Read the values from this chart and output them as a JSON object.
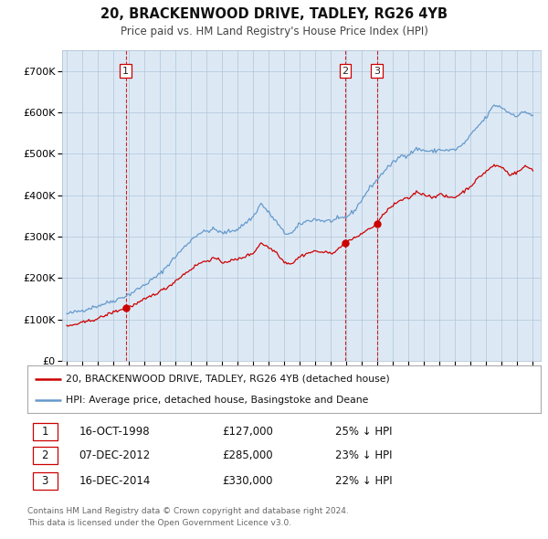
{
  "title": "20, BRACKENWOOD DRIVE, TADLEY, RG26 4YB",
  "subtitle": "Price paid vs. HM Land Registry's House Price Index (HPI)",
  "fig_bg_color": "#ffffff",
  "plot_bg_color": "#dce9f5",
  "ylim": [
    0,
    750000
  ],
  "yticks": [
    0,
    100000,
    200000,
    300000,
    400000,
    500000,
    600000,
    700000
  ],
  "ytick_labels": [
    "£0",
    "£100K",
    "£200K",
    "£300K",
    "£400K",
    "£500K",
    "£600K",
    "£700K"
  ],
  "xlim_start": 1994.7,
  "xlim_end": 2025.5,
  "transactions": [
    {
      "num": 1,
      "date": "16-OCT-1998",
      "price": 127000,
      "pct": "25%",
      "year": 1998.79
    },
    {
      "num": 2,
      "date": "07-DEC-2012",
      "price": 285000,
      "pct": "23%",
      "year": 2012.93
    },
    {
      "num": 3,
      "date": "16-DEC-2014",
      "price": 330000,
      "pct": "22%",
      "year": 2014.96
    }
  ],
  "legend_property_label": "20, BRACKENWOOD DRIVE, TADLEY, RG26 4YB (detached house)",
  "legend_hpi_label": "HPI: Average price, detached house, Basingstoke and Deane",
  "footer1": "Contains HM Land Registry data © Crown copyright and database right 2024.",
  "footer2": "This data is licensed under the Open Government Licence v3.0.",
  "property_color": "#cc0000",
  "hpi_color": "#6699cc",
  "marker_color": "#cc0000",
  "vline_color": "#cc0000",
  "grid_color": "#b0c4d8",
  "hpi_keypoints": [
    [
      1995.0,
      113000
    ],
    [
      1996.0,
      122000
    ],
    [
      1997.0,
      133000
    ],
    [
      1998.0,
      145000
    ],
    [
      1999.0,
      160000
    ],
    [
      2000.0,
      183000
    ],
    [
      2001.0,
      210000
    ],
    [
      2002.0,
      252000
    ],
    [
      2003.0,
      292000
    ],
    [
      2003.5,
      308000
    ],
    [
      2004.5,
      318000
    ],
    [
      2005.0,
      308000
    ],
    [
      2006.0,
      318000
    ],
    [
      2007.0,
      348000
    ],
    [
      2007.5,
      380000
    ],
    [
      2008.5,
      335000
    ],
    [
      2009.0,
      308000
    ],
    [
      2009.5,
      308000
    ],
    [
      2010.0,
      330000
    ],
    [
      2010.5,
      338000
    ],
    [
      2011.0,
      342000
    ],
    [
      2011.5,
      338000
    ],
    [
      2012.0,
      338000
    ],
    [
      2012.5,
      342000
    ],
    [
      2013.0,
      348000
    ],
    [
      2013.5,
      362000
    ],
    [
      2014.0,
      390000
    ],
    [
      2014.5,
      418000
    ],
    [
      2015.0,
      438000
    ],
    [
      2015.5,
      462000
    ],
    [
      2016.0,
      478000
    ],
    [
      2016.5,
      495000
    ],
    [
      2017.0,
      498000
    ],
    [
      2017.5,
      512000
    ],
    [
      2018.0,
      508000
    ],
    [
      2018.5,
      505000
    ],
    [
      2019.0,
      510000
    ],
    [
      2019.5,
      508000
    ],
    [
      2020.0,
      510000
    ],
    [
      2020.5,
      522000
    ],
    [
      2021.0,
      545000
    ],
    [
      2021.5,
      568000
    ],
    [
      2022.0,
      588000
    ],
    [
      2022.5,
      618000
    ],
    [
      2023.0,
      612000
    ],
    [
      2023.5,
      598000
    ],
    [
      2024.0,
      592000
    ],
    [
      2024.5,
      602000
    ],
    [
      2025.0,
      592000
    ]
  ],
  "prop_keypoints": [
    [
      1995.0,
      83000
    ],
    [
      1996.0,
      92000
    ],
    [
      1997.0,
      102000
    ],
    [
      1998.0,
      118000
    ],
    [
      1998.79,
      127000
    ],
    [
      1999.5,
      138000
    ],
    [
      2000.5,
      158000
    ],
    [
      2001.5,
      178000
    ],
    [
      2002.5,
      208000
    ],
    [
      2003.5,
      235000
    ],
    [
      2004.5,
      248000
    ],
    [
      2005.0,
      238000
    ],
    [
      2006.0,
      245000
    ],
    [
      2007.0,
      260000
    ],
    [
      2007.5,
      285000
    ],
    [
      2008.5,
      262000
    ],
    [
      2009.0,
      238000
    ],
    [
      2009.5,
      235000
    ],
    [
      2010.0,
      252000
    ],
    [
      2010.5,
      260000
    ],
    [
      2011.0,
      265000
    ],
    [
      2011.5,
      262000
    ],
    [
      2012.0,
      260000
    ],
    [
      2012.5,
      270000
    ],
    [
      2012.93,
      285000
    ],
    [
      2013.0,
      288000
    ],
    [
      2013.5,
      295000
    ],
    [
      2014.0,
      308000
    ],
    [
      2014.96,
      330000
    ],
    [
      2015.5,
      360000
    ],
    [
      2016.0,
      375000
    ],
    [
      2016.5,
      388000
    ],
    [
      2017.0,
      392000
    ],
    [
      2017.5,
      408000
    ],
    [
      2018.0,
      402000
    ],
    [
      2018.5,
      395000
    ],
    [
      2019.0,
      402000
    ],
    [
      2019.5,
      395000
    ],
    [
      2020.0,
      395000
    ],
    [
      2020.5,
      408000
    ],
    [
      2021.0,
      422000
    ],
    [
      2021.5,
      442000
    ],
    [
      2022.0,
      458000
    ],
    [
      2022.5,
      472000
    ],
    [
      2023.0,
      468000
    ],
    [
      2023.5,
      450000
    ],
    [
      2024.0,
      455000
    ],
    [
      2024.5,
      470000
    ],
    [
      2025.0,
      462000
    ]
  ]
}
